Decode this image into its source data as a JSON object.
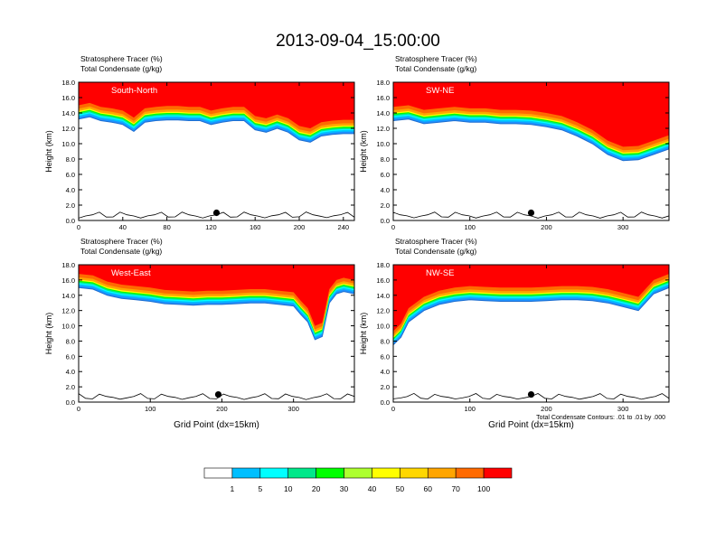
{
  "title": "2013-09-04_15:00:00",
  "colors": {
    "levels": [
      "#ffffff",
      "#1e90ff",
      "#00bfff",
      "#00ffff",
      "#00e88a",
      "#00ff00",
      "#adff2f",
      "#ffff00",
      "#ffd700",
      "#ffa500",
      "#ff6a00",
      "#ff0000"
    ],
    "plot_bg": "#ffffff",
    "contour": "#000000"
  },
  "colorbar": {
    "labels": [
      "1",
      "5",
      "10",
      "20",
      "30",
      "40",
      "50",
      "60",
      "70",
      "100"
    ]
  },
  "contour_note": "Total Condensate Contours: .01 to .01 by .000",
  "chart_data": [
    {
      "type": "heatmap",
      "panel": "South-North",
      "title_lines": [
        "Stratosphere Tracer   (%)",
        "Total Condensate   (g/kg)"
      ],
      "ylabel": "Height (km)",
      "xlabel": "",
      "xlim": [
        0,
        250
      ],
      "ylim": [
        0,
        18
      ],
      "xticks": [
        "0",
        "40",
        "80",
        "120",
        "160",
        "200",
        "240"
      ],
      "yticks": [
        "0.0",
        "2.0",
        "4.0",
        "6.0",
        "8.0",
        "10.0",
        "12.0",
        "14.0",
        "16.0",
        "18.0"
      ],
      "marker_x": 125,
      "tropopause_x": [
        0,
        10,
        20,
        30,
        40,
        50,
        60,
        70,
        80,
        90,
        100,
        110,
        120,
        130,
        140,
        150,
        160,
        170,
        180,
        190,
        200,
        210,
        220,
        230,
        240,
        250
      ],
      "tropopause_km": [
        13.2,
        13.5,
        13.0,
        12.8,
        12.5,
        11.6,
        12.8,
        13.0,
        13.1,
        13.1,
        13.0,
        13.0,
        12.5,
        12.8,
        13.0,
        13.0,
        11.8,
        11.5,
        12.0,
        11.5,
        10.5,
        10.2,
        11.0,
        11.2,
        11.3,
        11.3
      ]
    },
    {
      "type": "heatmap",
      "panel": "SW-NE",
      "title_lines": [
        "Stratosphere Tracer   (%)",
        "Total Condensate   (g/kg)"
      ],
      "ylabel": "Height (km)",
      "xlabel": "",
      "xlim": [
        0,
        360
      ],
      "ylim": [
        0,
        18
      ],
      "xticks": [
        "0",
        "100",
        "200",
        "300"
      ],
      "yticks": [
        "0.0",
        "2.0",
        "4.0",
        "6.0",
        "8.0",
        "10.0",
        "12.0",
        "14.0",
        "16.0",
        "18.0"
      ],
      "marker_x": 180,
      "tropopause_x": [
        0,
        20,
        40,
        60,
        80,
        100,
        120,
        140,
        160,
        180,
        200,
        220,
        240,
        260,
        280,
        300,
        320,
        340,
        360
      ],
      "tropopause_km": [
        13.0,
        13.2,
        12.6,
        12.8,
        13.0,
        12.8,
        12.8,
        12.6,
        12.6,
        12.5,
        12.2,
        11.8,
        11.0,
        10.0,
        8.6,
        7.8,
        7.9,
        8.6,
        9.3
      ]
    },
    {
      "type": "heatmap",
      "panel": "West-East",
      "title_lines": [
        "Stratosphere Tracer   (%)",
        "Total Condensate   (g/kg)"
      ],
      "ylabel": "Height (km)",
      "xlabel": "Grid Point (dx=15km)",
      "xlim": [
        0,
        385
      ],
      "ylim": [
        0,
        18
      ],
      "xticks": [
        "0",
        "100",
        "200",
        "300"
      ],
      "yticks": [
        "0.0",
        "2.0",
        "4.0",
        "6.0",
        "8.0",
        "10.0",
        "12.0",
        "14.0",
        "16.0",
        "18.0"
      ],
      "marker_x": 195,
      "tropopause_x": [
        0,
        20,
        40,
        60,
        80,
        100,
        120,
        140,
        160,
        180,
        200,
        220,
        240,
        260,
        280,
        300,
        310,
        320,
        330,
        340,
        350,
        360,
        370,
        385
      ],
      "tropopause_km": [
        15.0,
        14.8,
        14.0,
        13.6,
        13.4,
        13.2,
        12.9,
        12.8,
        12.7,
        12.8,
        12.8,
        12.9,
        13.0,
        13.0,
        12.8,
        12.6,
        11.5,
        10.5,
        8.2,
        8.6,
        13.0,
        14.2,
        14.5,
        14.2
      ]
    },
    {
      "type": "heatmap",
      "panel": "NW-SE",
      "title_lines": [
        "Stratosphere Tracer   (%)",
        "Total Condensate   (g/kg)"
      ],
      "ylabel": "Height (km)",
      "xlabel": "Grid Point (dx=15km)",
      "xlim": [
        0,
        360
      ],
      "ylim": [
        0,
        18
      ],
      "xticks": [
        "0",
        "100",
        "200",
        "300"
      ],
      "yticks": [
        "0.0",
        "2.0",
        "4.0",
        "6.0",
        "8.0",
        "10.0",
        "12.0",
        "14.0",
        "16.0",
        "18.0"
      ],
      "marker_x": 180,
      "tropopause_x": [
        0,
        10,
        20,
        40,
        60,
        80,
        100,
        120,
        140,
        160,
        180,
        200,
        220,
        240,
        260,
        280,
        300,
        320,
        340,
        360
      ],
      "tropopause_km": [
        7.5,
        8.5,
        10.5,
        12.0,
        12.8,
        13.2,
        13.4,
        13.3,
        13.2,
        13.2,
        13.2,
        13.3,
        13.4,
        13.4,
        13.3,
        13.0,
        12.5,
        12.0,
        14.2,
        15.0
      ]
    }
  ]
}
